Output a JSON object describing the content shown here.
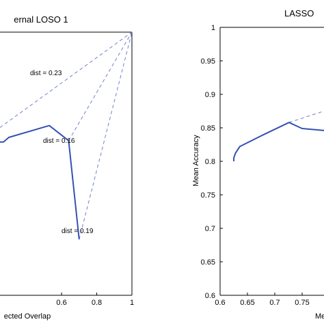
{
  "colors": {
    "series": "#3451b3",
    "dashed": "#7080cc"
  },
  "chart_data": [
    {
      "type": "line",
      "title": "ernal LOSO 1",
      "xlabel": "ected Overlap",
      "ylabel": "",
      "xlim": [
        0.25,
        1.0
      ],
      "ylim": [
        0.6,
        1.0
      ],
      "xticks": [
        {
          "value": 0.6,
          "label": "0.6"
        },
        {
          "value": 0.8,
          "label": "0.8"
        },
        {
          "value": 1.0,
          "label": "1"
        }
      ],
      "series": [
        {
          "x": [
            0.25,
            0.27,
            0.3,
            0.53,
            0.64,
            0.7
          ],
          "y": [
            0.833,
            0.833,
            0.84,
            0.858,
            0.835,
            0.685
          ]
        }
      ],
      "reference_point": {
        "x": 1.0,
        "y": 1.0
      },
      "distance_lines": [
        {
          "x": 0.25,
          "y": 0.855,
          "label": "dist = 0.23"
        },
        {
          "x": 0.64,
          "y": 0.835,
          "label": "dist = 0.16"
        },
        {
          "x": 0.7,
          "y": 0.685,
          "label": "dist = 0.19"
        }
      ]
    },
    {
      "type": "line",
      "title": "LASSO",
      "xlabel": "Me",
      "ylabel": "Mean Accuracy",
      "xlim": [
        0.6,
        0.79
      ],
      "ylim": [
        0.6,
        1.0
      ],
      "xticks": [
        {
          "value": 0.6,
          "label": "0.6"
        },
        {
          "value": 0.65,
          "label": "0.65"
        },
        {
          "value": 0.7,
          "label": "0.7"
        },
        {
          "value": 0.75,
          "label": "0.75"
        }
      ],
      "yticks": [
        {
          "value": 0.6,
          "label": "0.6"
        },
        {
          "value": 0.65,
          "label": "0.65"
        },
        {
          "value": 0.7,
          "label": "0.7"
        },
        {
          "value": 0.75,
          "label": "0.75"
        },
        {
          "value": 0.8,
          "label": "0.8"
        },
        {
          "value": 0.85,
          "label": "0.85"
        },
        {
          "value": 0.9,
          "label": "0.9"
        },
        {
          "value": 0.95,
          "label": "0.95"
        },
        {
          "value": 1.0,
          "label": "1"
        }
      ],
      "series": [
        {
          "x": [
            0.625,
            0.625,
            0.628,
            0.636,
            0.68,
            0.726,
            0.75,
            0.79
          ],
          "y": [
            0.8,
            0.805,
            0.812,
            0.822,
            0.84,
            0.858,
            0.849,
            0.846
          ]
        }
      ],
      "dashed_segment": {
        "x": [
          0.726,
          0.79
        ],
        "y": [
          0.858,
          0.875
        ]
      }
    }
  ]
}
